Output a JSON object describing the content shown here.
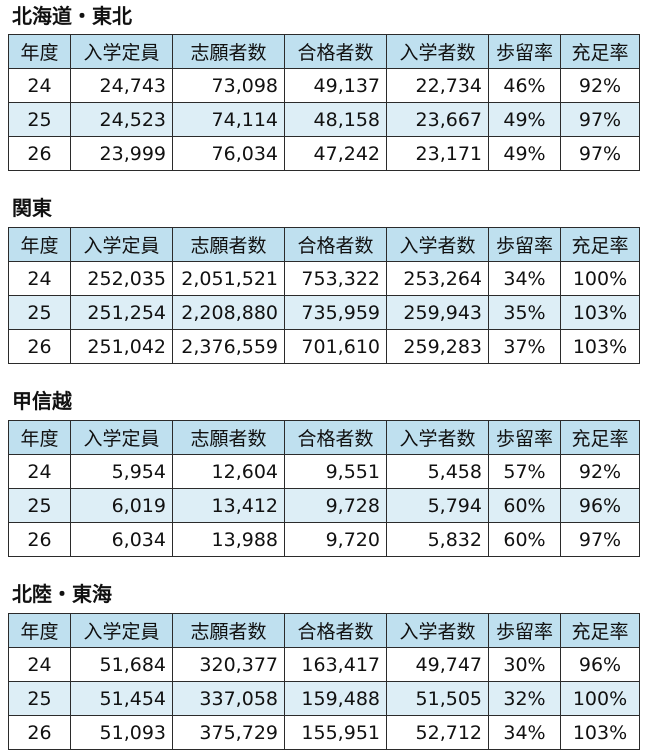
{
  "columns": [
    "年度",
    "入学定員",
    "志願者数",
    "合格者数",
    "入学者数",
    "歩留率",
    "充足率"
  ],
  "sections": [
    {
      "title": "北海道・東北",
      "rows": [
        [
          "24",
          "24,743",
          "73,098",
          "49,137",
          "22,734",
          "46%",
          "92%"
        ],
        [
          "25",
          "24,523",
          "74,114",
          "48,158",
          "23,667",
          "49%",
          "97%"
        ],
        [
          "26",
          "23,999",
          "76,034",
          "47,242",
          "23,171",
          "49%",
          "97%"
        ]
      ]
    },
    {
      "title": "関東",
      "rows": [
        [
          "24",
          "252,035",
          "2,051,521",
          "753,322",
          "253,264",
          "34%",
          "100%"
        ],
        [
          "25",
          "251,254",
          "2,208,880",
          "735,959",
          "259,943",
          "35%",
          "103%"
        ],
        [
          "26",
          "251,042",
          "2,376,559",
          "701,610",
          "259,283",
          "37%",
          "103%"
        ]
      ]
    },
    {
      "title": "甲信越",
      "rows": [
        [
          "24",
          "5,954",
          "12,604",
          "9,551",
          "5,458",
          "57%",
          "92%"
        ],
        [
          "25",
          "6,019",
          "13,412",
          "9,728",
          "5,794",
          "60%",
          "96%"
        ],
        [
          "26",
          "6,034",
          "13,988",
          "9,720",
          "5,832",
          "60%",
          "97%"
        ]
      ]
    },
    {
      "title": "北陸・東海",
      "rows": [
        [
          "24",
          "51,684",
          "320,377",
          "163,417",
          "49,747",
          "30%",
          "96%"
        ],
        [
          "25",
          "51,454",
          "337,058",
          "159,488",
          "51,505",
          "32%",
          "100%"
        ],
        [
          "26",
          "51,093",
          "375,729",
          "155,951",
          "52,712",
          "34%",
          "103%"
        ]
      ]
    }
  ]
}
